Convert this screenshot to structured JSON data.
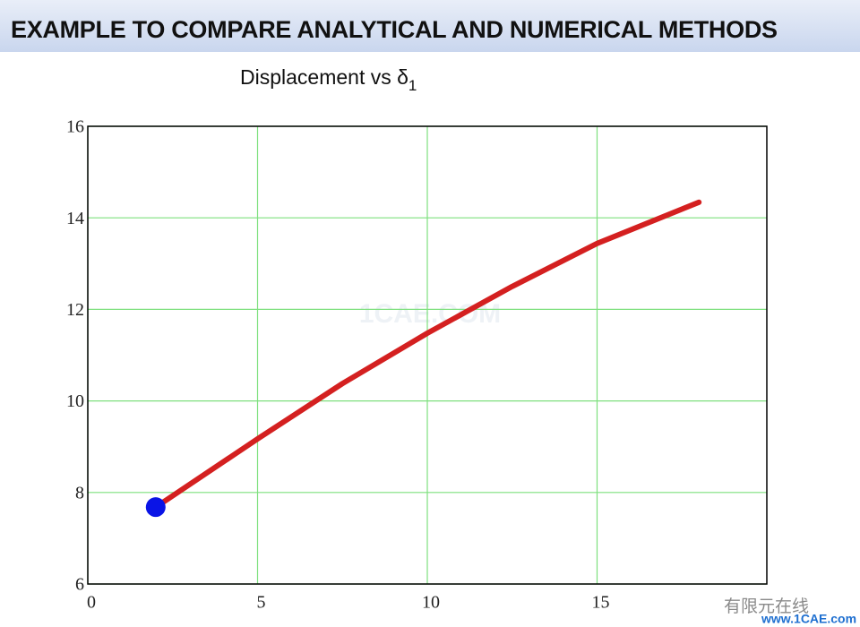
{
  "header": {
    "title": "EXAMPLE TO COMPARE ANALYTICAL AND NUMERICAL METHODS"
  },
  "chart_data": {
    "type": "line",
    "title": "Displacement vs δ",
    "title_subscript": "1",
    "series": [
      {
        "color": "#d42020",
        "x": [
          2,
          5,
          7.5,
          10,
          12.5,
          15,
          18
        ],
        "values": [
          7.68,
          9.17,
          10.38,
          11.48,
          12.5,
          13.44,
          14.34
        ]
      },
      {
        "color": "#0a14e6",
        "marker": true,
        "x": [
          2
        ],
        "values": [
          7.68
        ]
      }
    ],
    "xlim": [
      0,
      20
    ],
    "xticks": [
      0,
      5,
      10,
      15
    ],
    "ylim": [
      6,
      16
    ],
    "yticks": [
      6,
      8,
      10,
      12,
      14,
      16
    ],
    "grid": true,
    "grid_color": "#7ee07e"
  },
  "watermarks": {
    "center": "1CAE.COM",
    "corner": "有限元在线",
    "site": "www.1CAE.com"
  }
}
